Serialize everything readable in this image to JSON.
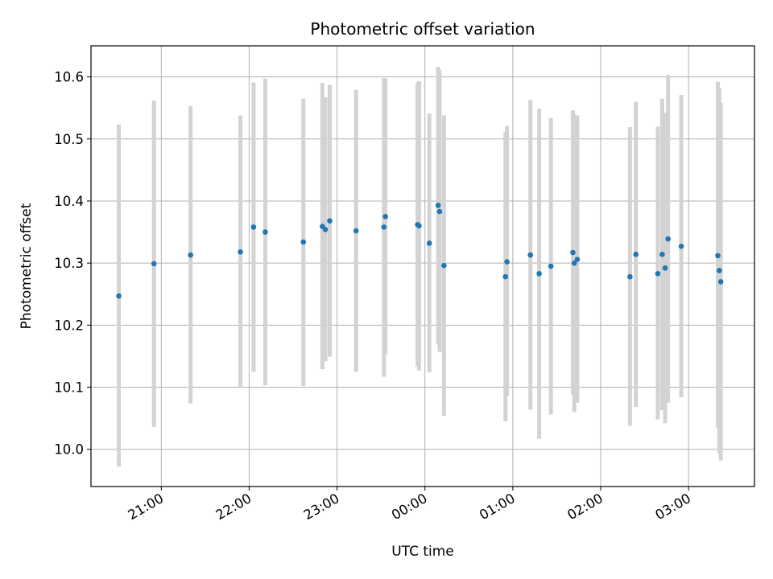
{
  "chart_data": {
    "type": "scatter",
    "title": "Photometric offset variation",
    "xlabel": "UTC time",
    "ylabel": "Photometric offset",
    "x_ticks": [
      "21:00",
      "22:00",
      "23:00",
      "00:00",
      "01:00",
      "02:00",
      "03:00"
    ],
    "y_ticks": [
      "10.0",
      "10.1",
      "10.2",
      "10.3",
      "10.4",
      "10.5",
      "10.6"
    ],
    "ylim": [
      9.94,
      10.65
    ],
    "xlim": [
      "20:12",
      "03:45"
    ],
    "grid": true,
    "errorbar_color": "#d3d3d3",
    "marker_color": "#1f77b4",
    "points": [
      {
        "t": "20:31",
        "y": 10.247,
        "lo": 9.972,
        "hi": 10.523
      },
      {
        "t": "20:55",
        "y": 10.299,
        "lo": 10.036,
        "hi": 10.562
      },
      {
        "t": "21:20",
        "y": 10.313,
        "lo": 10.074,
        "hi": 10.553
      },
      {
        "t": "21:54",
        "y": 10.318,
        "lo": 10.099,
        "hi": 10.538
      },
      {
        "t": "22:03",
        "y": 10.358,
        "lo": 10.125,
        "hi": 10.591
      },
      {
        "t": "22:11",
        "y": 10.35,
        "lo": 10.103,
        "hi": 10.597
      },
      {
        "t": "22:37",
        "y": 10.334,
        "lo": 10.102,
        "hi": 10.565
      },
      {
        "t": "22:50",
        "y": 10.359,
        "lo": 10.129,
        "hi": 10.59
      },
      {
        "t": "22:52",
        "y": 10.354,
        "lo": 10.142,
        "hi": 10.567
      },
      {
        "t": "22:55",
        "y": 10.368,
        "lo": 10.149,
        "hi": 10.587
      },
      {
        "t": "23:13",
        "y": 10.352,
        "lo": 10.125,
        "hi": 10.579
      },
      {
        "t": "23:32",
        "y": 10.358,
        "lo": 10.117,
        "hi": 10.598
      },
      {
        "t": "23:33",
        "y": 10.375,
        "lo": 10.152,
        "hi": 10.598
      },
      {
        "t": "23:55",
        "y": 10.362,
        "lo": 10.133,
        "hi": 10.59
      },
      {
        "t": "23:56",
        "y": 10.36,
        "lo": 10.127,
        "hi": 10.593
      },
      {
        "t": "00:03",
        "y": 10.332,
        "lo": 10.124,
        "hi": 10.541
      },
      {
        "t": "00:09",
        "y": 10.393,
        "lo": 10.17,
        "hi": 10.616
      },
      {
        "t": "00:10",
        "y": 10.383,
        "lo": 10.157,
        "hi": 10.611
      },
      {
        "t": "00:13",
        "y": 10.296,
        "lo": 10.054,
        "hi": 10.538
      },
      {
        "t": "00:55",
        "y": 10.278,
        "lo": 10.045,
        "hi": 10.511
      },
      {
        "t": "00:56",
        "y": 10.302,
        "lo": 10.086,
        "hi": 10.521
      },
      {
        "t": "01:12",
        "y": 10.313,
        "lo": 10.064,
        "hi": 10.563
      },
      {
        "t": "01:18",
        "y": 10.283,
        "lo": 10.017,
        "hi": 10.549
      },
      {
        "t": "01:26",
        "y": 10.295,
        "lo": 10.056,
        "hi": 10.534
      },
      {
        "t": "01:41",
        "y": 10.317,
        "lo": 10.088,
        "hi": 10.546
      },
      {
        "t": "01:42",
        "y": 10.3,
        "lo": 10.06,
        "hi": 10.54
      },
      {
        "t": "01:44",
        "y": 10.306,
        "lo": 10.075,
        "hi": 10.538
      },
      {
        "t": "02:20",
        "y": 10.278,
        "lo": 10.038,
        "hi": 10.519
      },
      {
        "t": "02:24",
        "y": 10.314,
        "lo": 10.068,
        "hi": 10.56
      },
      {
        "t": "02:39",
        "y": 10.283,
        "lo": 10.048,
        "hi": 10.52
      },
      {
        "t": "02:42",
        "y": 10.314,
        "lo": 10.063,
        "hi": 10.565
      },
      {
        "t": "02:44",
        "y": 10.292,
        "lo": 10.042,
        "hi": 10.542
      },
      {
        "t": "02:46",
        "y": 10.339,
        "lo": 10.075,
        "hi": 10.603
      },
      {
        "t": "02:55",
        "y": 10.327,
        "lo": 10.084,
        "hi": 10.571
      },
      {
        "t": "03:20",
        "y": 10.312,
        "lo": 10.035,
        "hi": 10.592
      },
      {
        "t": "03:21",
        "y": 10.288,
        "lo": 9.993,
        "hi": 10.582
      },
      {
        "t": "03:22",
        "y": 10.27,
        "lo": 9.982,
        "hi": 10.558
      }
    ]
  }
}
